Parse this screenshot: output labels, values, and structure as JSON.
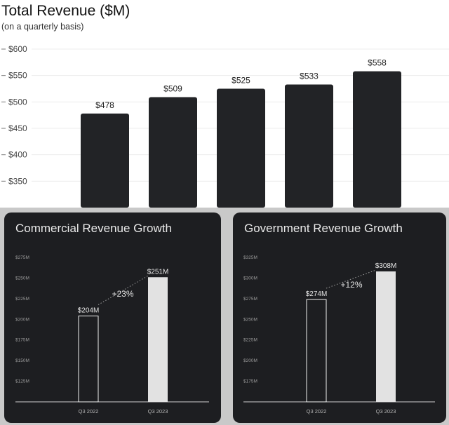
{
  "chart_data": [
    {
      "type": "bar",
      "title": "Total Revenue ($M)",
      "subtitle": "(on a quarterly basis)",
      "categories": [
        "",
        "",
        "",
        "",
        ""
      ],
      "values": [
        478,
        509,
        525,
        533,
        558
      ],
      "data_labels": [
        "$478",
        "$509",
        "$525",
        "$533",
        "$558"
      ],
      "yticks": [
        "$350",
        "$400",
        "$450",
        "$500",
        "$550",
        "$600"
      ],
      "ylim": [
        300,
        600
      ],
      "bar_color": "#222326"
    },
    {
      "type": "bar",
      "title": "Commercial Revenue Growth",
      "categories": [
        "Q3 2022",
        "Q3 2023"
      ],
      "values": [
        204,
        251
      ],
      "data_labels": [
        "$204M",
        "$251M"
      ],
      "growth_label": "+23%",
      "yticks": [
        "$125M",
        "$150M",
        "$175M",
        "$200M",
        "$225M",
        "$250M",
        "$275M"
      ],
      "ylim": [
        100,
        275
      ]
    },
    {
      "type": "bar",
      "title": "Government Revenue Growth",
      "categories": [
        "Q3 2022",
        "Q3 2023"
      ],
      "values": [
        274,
        308
      ],
      "data_labels": [
        "$274M",
        "$308M"
      ],
      "growth_label": "+12%",
      "yticks": [
        "$175M",
        "$200M",
        "$225M",
        "$250M",
        "$275M",
        "$300M",
        "$325M"
      ],
      "ylim": [
        150,
        325
      ]
    }
  ],
  "colors": {
    "panel_bg": "#1d1e21",
    "panel_text": "#e9e9e9",
    "bar_outline": "#ffffff",
    "bar_fill_highlight": "#e2e2e2"
  }
}
